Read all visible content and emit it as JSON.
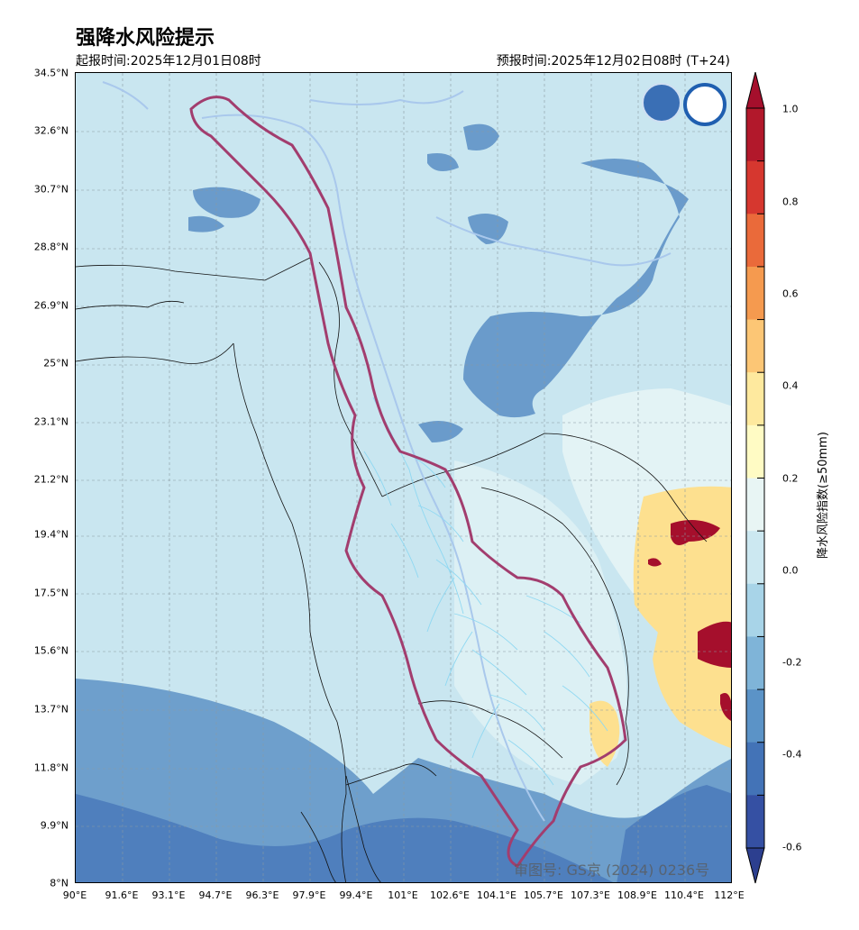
{
  "title": "强降水风险提示",
  "issue_time": "起报时间:2025年12月01日08时",
  "valid_time": "预报时间:2025年12月02日08时 (T+24)",
  "watermark": "审图号: GS京 (2024) 0236号",
  "lat_labels": [
    "34.5°N",
    "32.6°N",
    "30.7°N",
    "28.8°N",
    "26.9°N",
    "25°N",
    "23.1°N",
    "21.2°N",
    "19.4°N",
    "17.5°N",
    "15.6°N",
    "13.7°N",
    "11.8°N",
    "9.9°N",
    "8°N"
  ],
  "lon_labels": [
    "90°E",
    "91.6°E",
    "93.1°E",
    "94.7°E",
    "96.3°E",
    "97.9°E",
    "99.4°E",
    "101°E",
    "102.6°E",
    "104.1°E",
    "105.7°E",
    "107.3°E",
    "108.9°E",
    "110.4°E",
    "112°E"
  ],
  "colorbar": {
    "title": "降水风险指数(≥50mm)",
    "tick_labels": [
      "1.0",
      "0.8",
      "0.6",
      "0.4",
      "0.2",
      "0.0",
      "-0.2",
      "-0.4",
      "-0.6"
    ],
    "colors": [
      "#b2182b",
      "#d6372f",
      "#ea6a3a",
      "#f59a4f",
      "#fcc675",
      "#fee99e",
      "#fffbc4",
      "#e8f5f4",
      "#cce8f1",
      "#a8d4e8",
      "#7fb4d8",
      "#5b93c7",
      "#4373b7",
      "#3550a3"
    ]
  },
  "colors": {
    "background_sea": "#c9e6f0",
    "light_region": "#e3f3f5",
    "mid_blue": "#5f95c8",
    "dark_blue": "#4676b8",
    "basin_outline": "#a23d6e",
    "rivers": "#8fd8f2",
    "yellow": "#fde08f",
    "red": "#a50f2c"
  }
}
